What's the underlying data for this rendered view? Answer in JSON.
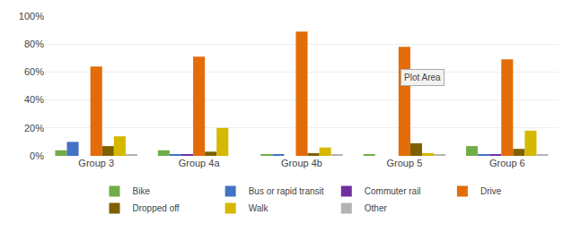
{
  "chart_data": {
    "type": "bar",
    "categories": [
      "Group 3",
      "Group 4a",
      "Group 4b",
      "Group 5",
      "Group 6"
    ],
    "series": [
      {
        "name": "Bike",
        "color": "#70ad47",
        "values": [
          0.04,
          0.04,
          0.01,
          0.01,
          0.07
        ]
      },
      {
        "name": "Bus or rapid transit",
        "color": "#4472c4",
        "values": [
          0.1,
          0.01,
          0.01,
          0.0,
          0.01
        ]
      },
      {
        "name": "Commuter rail",
        "color": "#7030a0",
        "values": [
          0.0,
          0.01,
          0.0,
          0.0,
          0.01
        ]
      },
      {
        "name": "Drive",
        "color": "#e36c09",
        "values": [
          0.64,
          0.71,
          0.89,
          0.78,
          0.69
        ]
      },
      {
        "name": "Dropped off",
        "color": "#7f6000",
        "values": [
          0.07,
          0.03,
          0.02,
          0.09,
          0.05
        ]
      },
      {
        "name": "Walk",
        "color": "#d6b800",
        "values": [
          0.14,
          0.2,
          0.06,
          0.02,
          0.18
        ]
      },
      {
        "name": "Other",
        "color": "#b3b3b3",
        "values": [
          0.01,
          0.0,
          0.01,
          0.01,
          0.01
        ]
      }
    ],
    "ylim": [
      0,
      1.0
    ],
    "yticks": [
      {
        "value": 0,
        "label": "0%"
      },
      {
        "value": 0.2,
        "label": "20%"
      },
      {
        "value": 0.4,
        "label": "40%"
      },
      {
        "value": 0.6,
        "label": "60%"
      },
      {
        "value": 0.8,
        "label": "80%"
      },
      {
        "value": 1.0,
        "label": "100%"
      }
    ],
    "grid": true,
    "legend": "bottom",
    "annotations": [
      "Plot Area"
    ]
  }
}
